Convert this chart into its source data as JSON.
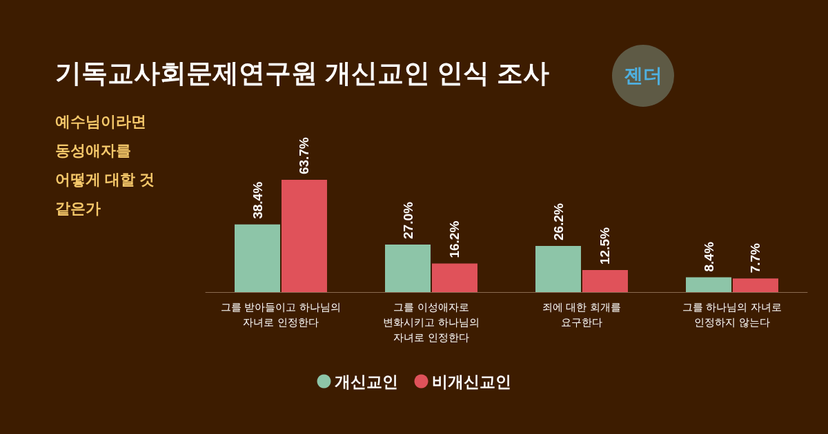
{
  "chart_data": {
    "type": "bar",
    "title": "기독교사회문제연구원 개신교인 인식 조사",
    "subtitle": "예수님이라면\n동성애자를\n어떻게 대할 것\n같은가",
    "annotations": [
      "젠더"
    ],
    "categories": [
      "그를 받아들이고 하나님의\n자녀로 인정한다",
      "그를 이성애자로\n변화시키고 하나님의\n자녀로 인정한다",
      "죄에 대한 회개를\n요구한다",
      "그를 하나님의 자녀로\n인정하지 않는다"
    ],
    "series": [
      {
        "name": "개신교인",
        "color": "#8dc5a8",
        "values": [
          38.4,
          27.0,
          26.2,
          8.4
        ],
        "value_labels": [
          "38.4%",
          "27.0%",
          "26.2%",
          "8.4%"
        ]
      },
      {
        "name": "비개신교인",
        "color": "#e0525a",
        "values": [
          63.7,
          16.2,
          12.5,
          7.7
        ],
        "value_labels": [
          "63.7%",
          "16.2%",
          "12.5%",
          "7.7%"
        ]
      }
    ],
    "legend": "bottom"
  }
}
